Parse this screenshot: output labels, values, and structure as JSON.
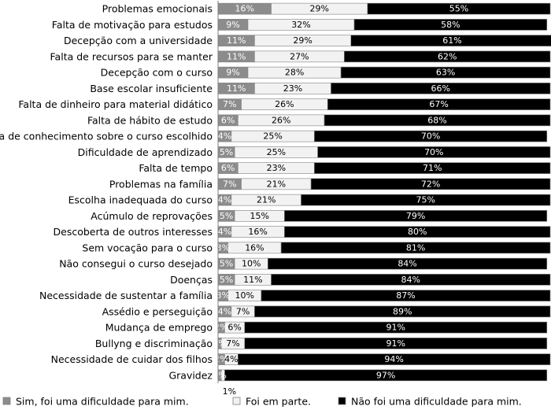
{
  "chart_data": {
    "type": "bar",
    "orientation": "horizontal",
    "stacked": true,
    "percent": true,
    "title": "",
    "xlabel": "",
    "ylabel": "",
    "xlim": [
      0,
      100
    ],
    "categories": [
      "Problemas emocionais",
      "Falta de motivação para estudos",
      "Decepção com a universidade",
      "Falta de recursos para se manter",
      "Decepção com o curso",
      "Base escolar insuficiente",
      "Falta de dinheiro para material didático",
      "Falta de hábito de estudo",
      "Falta de conhecimento sobre o curso escolhido",
      "Dificuldade de aprendizado",
      "Falta de tempo",
      "Problemas na família",
      "Escolha inadequada do curso",
      "Acúmulo de reprovações",
      "Descoberta de outros interesses",
      "Sem vocação para o curso",
      "Não consegui o curso desejado",
      "Doenças",
      "Necessidade de sustentar a família",
      "Assédio e perseguição",
      "Mudança de emprego",
      "Bullyng e discriminação",
      "Necessidade de cuidar dos filhos",
      "Gravidez"
    ],
    "series": [
      {
        "name": "Sim, foi uma dificuldade para mim.",
        "color": "#8c8c8c",
        "values": [
          16,
          9,
          11,
          11,
          9,
          11,
          7,
          6,
          4,
          5,
          6,
          7,
          4,
          5,
          4,
          3,
          5,
          5,
          3,
          4,
          2,
          1,
          2,
          1
        ],
        "labels": [
          "16%",
          "9%",
          "11%",
          "11%",
          "9%",
          "11%",
          "7%",
          "6%",
          "4%",
          "5%",
          "6%",
          "7%",
          "4%",
          "5%",
          "4%",
          "3%",
          "5%",
          "5%",
          "3%",
          "4%",
          "2%",
          "1%",
          "2%",
          "1%"
        ]
      },
      {
        "name": "Foi em parte.",
        "color": "#f2f2f2",
        "values": [
          29,
          32,
          29,
          27,
          28,
          23,
          26,
          26,
          25,
          25,
          23,
          21,
          21,
          15,
          16,
          16,
          10,
          11,
          10,
          7,
          6,
          7,
          4,
          1
        ],
        "labels": [
          "29%",
          "32%",
          "29%",
          "27%",
          "28%",
          "23%",
          "26%",
          "26%",
          "25%",
          "25%",
          "23%",
          "21%",
          "21%",
          "15%",
          "16%",
          "16%",
          "10%",
          "11%",
          "10%",
          "7%",
          "6%",
          "7%",
          "4%",
          "1%"
        ]
      },
      {
        "name": "Não foi uma dificuldade para mim.",
        "color": "#000000",
        "values": [
          55,
          58,
          61,
          62,
          63,
          66,
          67,
          68,
          70,
          70,
          71,
          72,
          75,
          79,
          80,
          81,
          84,
          84,
          87,
          89,
          91,
          91,
          94,
          97
        ],
        "labels": [
          "55%",
          "58%",
          "61%",
          "62%",
          "63%",
          "66%",
          "67%",
          "68%",
          "70%",
          "70%",
          "71%",
          "72%",
          "75%",
          "79%",
          "80%",
          "81%",
          "84%",
          "84%",
          "87%",
          "89%",
          "91%",
          "91%",
          "94%",
          "97%"
        ]
      }
    ],
    "annotations": [
      {
        "text": "1%",
        "category": "Gravidez",
        "series": "Foi em parte."
      }
    ],
    "legend": {
      "position": "bottom",
      "items": [
        {
          "label": "Sim, foi uma dificuldade para mim.",
          "color": "#8c8c8c"
        },
        {
          "label": "Foi em parte.",
          "color": "#f2f2f2"
        },
        {
          "label": "Não foi uma dificuldade para mim.",
          "color": "#000000"
        }
      ]
    }
  }
}
